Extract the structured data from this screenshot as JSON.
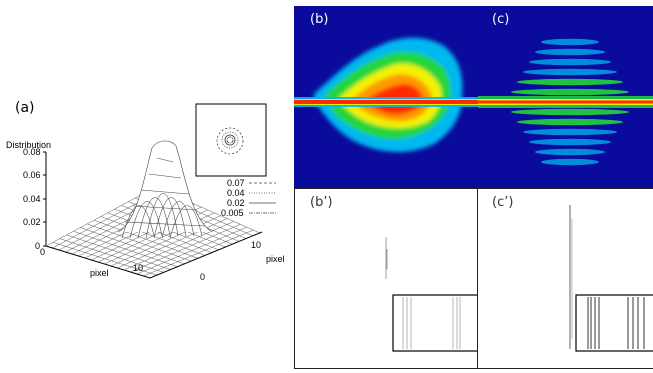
{
  "figure": {
    "panels": [
      {
        "id": "a",
        "label": "(a)"
      },
      {
        "id": "b",
        "label": "(b)"
      },
      {
        "id": "c",
        "label": "(c)"
      },
      {
        "id": "b_prime",
        "label": "(b’)"
      },
      {
        "id": "c_prime",
        "label": "(c’)"
      }
    ],
    "plot3d": {
      "zlabel": "Distribution",
      "ztick_labels": [
        "0.08",
        "0.06",
        "0.04",
        "0.02",
        "0"
      ],
      "xlabel": "pixel",
      "ylabel": "pixel",
      "x_tick_labels": [
        "0",
        "10"
      ],
      "y_tick_labels": [
        "0",
        "10"
      ],
      "legend": [
        {
          "value": "0.07",
          "style": "dashed"
        },
        {
          "value": "0.04",
          "style": "dotted"
        },
        {
          "value": "0.02",
          "style": "solid"
        },
        {
          "value": "0.005",
          "style": "dashdot"
        }
      ]
    },
    "colors": {
      "background_blue": "#0a0a9c",
      "hot": "#ff2a00",
      "orange": "#ff9900",
      "yellow": "#f2f200",
      "green": "#22d63a",
      "cyan": "#00b8f0"
    }
  }
}
